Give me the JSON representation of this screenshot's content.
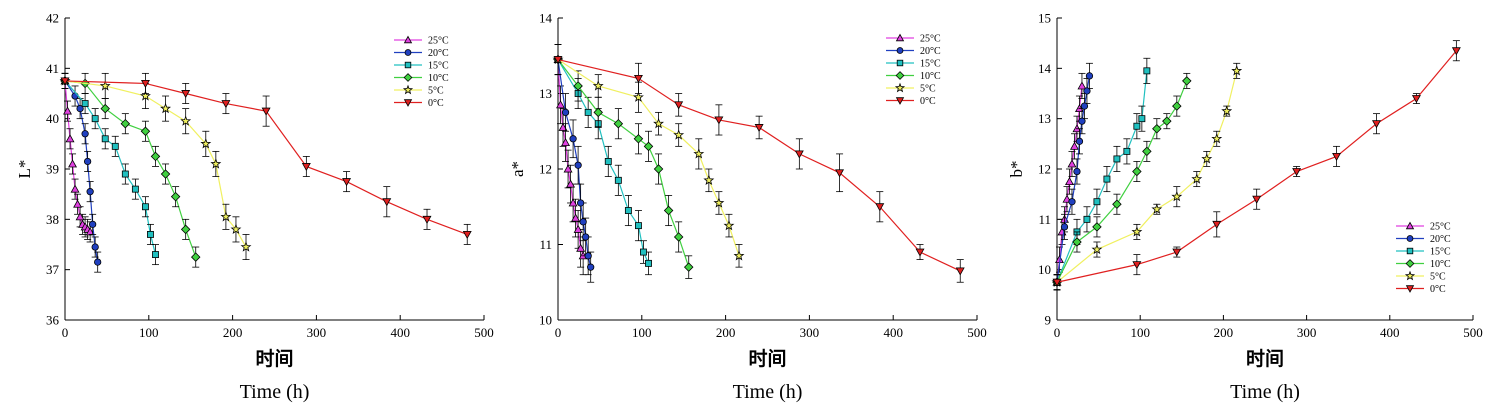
{
  "chart_data": [
    {
      "type": "line",
      "ylabel": "L*",
      "xlabel_cn": "时间",
      "xlabel_en": "Time (h)",
      "xlim": [
        0,
        500
      ],
      "ylim": [
        36,
        42
      ],
      "xticks": [
        0,
        100,
        200,
        300,
        400,
        500
      ],
      "yticks": [
        36,
        37,
        38,
        39,
        40,
        41,
        42
      ],
      "legend_position": "top-right",
      "series": [
        {
          "name": "25°C",
          "color": "#e040e0",
          "marker": "triangle-up",
          "x": [
            0,
            3,
            6,
            9,
            12,
            15,
            18,
            21,
            24,
            27,
            30
          ],
          "y": [
            40.75,
            40.15,
            39.6,
            39.1,
            38.6,
            38.3,
            38.05,
            37.9,
            37.85,
            37.8,
            37.75
          ],
          "err": [
            0.15,
            0.2,
            0.2,
            0.2,
            0.2,
            0.2,
            0.2,
            0.2,
            0.2,
            0.2,
            0.2
          ]
        },
        {
          "name": "20°C",
          "color": "#2040c0",
          "marker": "circle",
          "x": [
            0,
            12,
            18,
            24,
            27,
            30,
            33,
            36,
            39
          ],
          "y": [
            40.75,
            40.45,
            40.2,
            39.7,
            39.15,
            38.55,
            37.9,
            37.45,
            37.15
          ],
          "err": [
            0.15,
            0.2,
            0.2,
            0.2,
            0.2,
            0.2,
            0.2,
            0.2,
            0.2
          ]
        },
        {
          "name": "15°C",
          "color": "#20c0c0",
          "marker": "square",
          "x": [
            0,
            24,
            36,
            48,
            60,
            72,
            84,
            96,
            102,
            108
          ],
          "y": [
            40.75,
            40.3,
            40.0,
            39.6,
            39.45,
            38.9,
            38.6,
            38.25,
            37.7,
            37.3
          ],
          "err": [
            0.15,
            0.2,
            0.2,
            0.2,
            0.2,
            0.2,
            0.2,
            0.2,
            0.2,
            0.2
          ]
        },
        {
          "name": "10°C",
          "color": "#40d040",
          "marker": "diamond",
          "x": [
            0,
            24,
            48,
            72,
            96,
            108,
            120,
            132,
            144,
            156
          ],
          "y": [
            40.75,
            40.7,
            40.2,
            39.9,
            39.75,
            39.25,
            38.9,
            38.45,
            37.8,
            37.25
          ],
          "err": [
            0.15,
            0.2,
            0.2,
            0.2,
            0.2,
            0.2,
            0.2,
            0.2,
            0.2,
            0.2
          ]
        },
        {
          "name": "5°C",
          "color": "#f0f060",
          "marker": "star",
          "x": [
            0,
            48,
            96,
            120,
            144,
            168,
            180,
            192,
            204,
            216
          ],
          "y": [
            40.75,
            40.65,
            40.45,
            40.2,
            39.95,
            39.5,
            39.1,
            38.05,
            37.8,
            37.45
          ],
          "err": [
            0.15,
            0.25,
            0.25,
            0.25,
            0.25,
            0.25,
            0.25,
            0.25,
            0.25,
            0.25
          ]
        },
        {
          "name": "0°C",
          "color": "#e02020",
          "marker": "triangle-down",
          "x": [
            0,
            96,
            144,
            192,
            240,
            288,
            336,
            384,
            432,
            480
          ],
          "y": [
            40.75,
            40.7,
            40.5,
            40.3,
            40.15,
            39.05,
            38.75,
            38.35,
            38.0,
            37.7
          ],
          "err": [
            0.15,
            0.2,
            0.2,
            0.2,
            0.3,
            0.2,
            0.2,
            0.3,
            0.2,
            0.2
          ]
        }
      ]
    },
    {
      "type": "line",
      "ylabel": "a*",
      "xlabel_cn": "时间",
      "xlabel_en": "Time (h)",
      "xlim": [
        0,
        500
      ],
      "ylim": [
        10,
        14
      ],
      "xticks": [
        0,
        100,
        200,
        300,
        400,
        500
      ],
      "yticks": [
        10,
        11,
        12,
        13,
        14
      ],
      "legend_position": "top-right",
      "series": [
        {
          "name": "25°C",
          "color": "#e040e0",
          "marker": "triangle-up",
          "x": [
            0,
            3,
            6,
            9,
            12,
            15,
            18,
            21,
            24,
            27,
            30
          ],
          "y": [
            13.45,
            12.85,
            12.55,
            12.35,
            12.0,
            11.8,
            11.55,
            11.35,
            11.2,
            10.95,
            10.85
          ],
          "err": [
            0.2,
            0.25,
            0.25,
            0.25,
            0.25,
            0.25,
            0.25,
            0.25,
            0.25,
            0.25,
            0.25
          ]
        },
        {
          "name": "20°C",
          "color": "#2040c0",
          "marker": "circle",
          "x": [
            0,
            9,
            18,
            24,
            27,
            30,
            33,
            36,
            39
          ],
          "y": [
            13.45,
            12.75,
            12.4,
            12.05,
            11.55,
            11.3,
            11.1,
            10.85,
            10.7
          ],
          "err": [
            0.2,
            0.25,
            0.25,
            0.25,
            0.25,
            0.25,
            0.25,
            0.25,
            0.2
          ]
        },
        {
          "name": "15°C",
          "color": "#20c0c0",
          "marker": "square",
          "x": [
            0,
            24,
            36,
            48,
            60,
            72,
            84,
            96,
            102,
            108
          ],
          "y": [
            13.45,
            13.0,
            12.75,
            12.6,
            12.1,
            11.85,
            11.45,
            11.25,
            10.9,
            10.75
          ],
          "err": [
            0.2,
            0.2,
            0.2,
            0.2,
            0.2,
            0.2,
            0.2,
            0.2,
            0.15,
            0.15
          ]
        },
        {
          "name": "10°C",
          "color": "#40d040",
          "marker": "diamond",
          "x": [
            0,
            24,
            48,
            72,
            96,
            108,
            120,
            132,
            144,
            156
          ],
          "y": [
            13.45,
            13.1,
            12.75,
            12.6,
            12.4,
            12.3,
            12.0,
            11.45,
            11.1,
            10.7
          ],
          "err": [
            0.2,
            0.2,
            0.2,
            0.2,
            0.2,
            0.2,
            0.2,
            0.2,
            0.2,
            0.15
          ]
        },
        {
          "name": "5°C",
          "color": "#f0f060",
          "marker": "star",
          "x": [
            0,
            48,
            96,
            120,
            144,
            168,
            180,
            192,
            204,
            216
          ],
          "y": [
            13.45,
            13.1,
            12.95,
            12.6,
            12.45,
            12.2,
            11.85,
            11.55,
            11.25,
            10.85
          ],
          "err": [
            0.2,
            0.15,
            0.2,
            0.15,
            0.15,
            0.2,
            0.15,
            0.15,
            0.15,
            0.15
          ]
        },
        {
          "name": "0°C",
          "color": "#e02020",
          "marker": "triangle-down",
          "x": [
            0,
            96,
            144,
            192,
            240,
            288,
            336,
            384,
            432,
            480
          ],
          "y": [
            13.45,
            13.2,
            12.85,
            12.65,
            12.55,
            12.2,
            11.95,
            11.5,
            10.9,
            10.65
          ],
          "err": [
            0.2,
            0.2,
            0.15,
            0.2,
            0.15,
            0.2,
            0.25,
            0.2,
            0.1,
            0.15
          ]
        }
      ]
    },
    {
      "type": "line",
      "ylabel": "b*",
      "xlabel_cn": "时间",
      "xlabel_en": "Time (h)",
      "xlim": [
        0,
        500
      ],
      "ylim": [
        9,
        15
      ],
      "xticks": [
        0,
        100,
        200,
        300,
        400,
        500
      ],
      "yticks": [
        9,
        10,
        11,
        12,
        13,
        14,
        15
      ],
      "legend_position": "bottom-right",
      "series": [
        {
          "name": "25°C",
          "color": "#e040e0",
          "marker": "triangle-up",
          "x": [
            0,
            3,
            6,
            9,
            12,
            15,
            18,
            21,
            24,
            27,
            30
          ],
          "y": [
            9.75,
            10.2,
            10.75,
            11.0,
            11.4,
            11.75,
            12.1,
            12.45,
            12.8,
            13.2,
            13.65
          ],
          "err": [
            0.15,
            0.25,
            0.25,
            0.25,
            0.25,
            0.25,
            0.25,
            0.25,
            0.25,
            0.25,
            0.25
          ]
        },
        {
          "name": "20°C",
          "color": "#2040c0",
          "marker": "circle",
          "x": [
            0,
            9,
            18,
            24,
            27,
            30,
            33,
            36,
            39
          ],
          "y": [
            9.75,
            10.85,
            11.35,
            11.95,
            12.55,
            12.95,
            13.25,
            13.55,
            13.85
          ],
          "err": [
            0.15,
            0.25,
            0.25,
            0.25,
            0.25,
            0.25,
            0.25,
            0.25,
            0.25
          ]
        },
        {
          "name": "15°C",
          "color": "#20c0c0",
          "marker": "square",
          "x": [
            0,
            24,
            36,
            48,
            60,
            72,
            84,
            96,
            102,
            108
          ],
          "y": [
            9.75,
            10.75,
            11.0,
            11.35,
            11.8,
            12.2,
            12.35,
            12.85,
            13.0,
            13.95
          ],
          "err": [
            0.15,
            0.25,
            0.25,
            0.25,
            0.25,
            0.25,
            0.25,
            0.25,
            0.25,
            0.25
          ]
        },
        {
          "name": "10°C",
          "color": "#40d040",
          "marker": "diamond",
          "x": [
            0,
            24,
            48,
            72,
            96,
            108,
            120,
            132,
            144,
            156
          ],
          "y": [
            9.75,
            10.55,
            10.85,
            11.3,
            11.95,
            12.35,
            12.8,
            12.95,
            13.25,
            13.75
          ],
          "err": [
            0.15,
            0.2,
            0.2,
            0.2,
            0.2,
            0.2,
            0.2,
            0.15,
            0.2,
            0.15
          ]
        },
        {
          "name": "5°C",
          "color": "#f0f060",
          "marker": "star",
          "x": [
            0,
            48,
            96,
            120,
            144,
            168,
            180,
            192,
            204,
            216
          ],
          "y": [
            9.75,
            10.4,
            10.75,
            11.2,
            11.45,
            11.8,
            12.2,
            12.6,
            13.15,
            13.95
          ],
          "err": [
            0.15,
            0.15,
            0.15,
            0.1,
            0.2,
            0.15,
            0.15,
            0.15,
            0.1,
            0.15
          ]
        },
        {
          "name": "0°C",
          "color": "#e02020",
          "marker": "triangle-down",
          "x": [
            0,
            96,
            144,
            192,
            240,
            288,
            336,
            384,
            432,
            480
          ],
          "y": [
            9.75,
            10.1,
            10.35,
            10.9,
            11.4,
            11.95,
            12.25,
            12.9,
            13.4,
            14.35
          ],
          "err": [
            0.15,
            0.2,
            0.1,
            0.25,
            0.2,
            0.1,
            0.2,
            0.2,
            0.1,
            0.2
          ]
        }
      ]
    }
  ]
}
